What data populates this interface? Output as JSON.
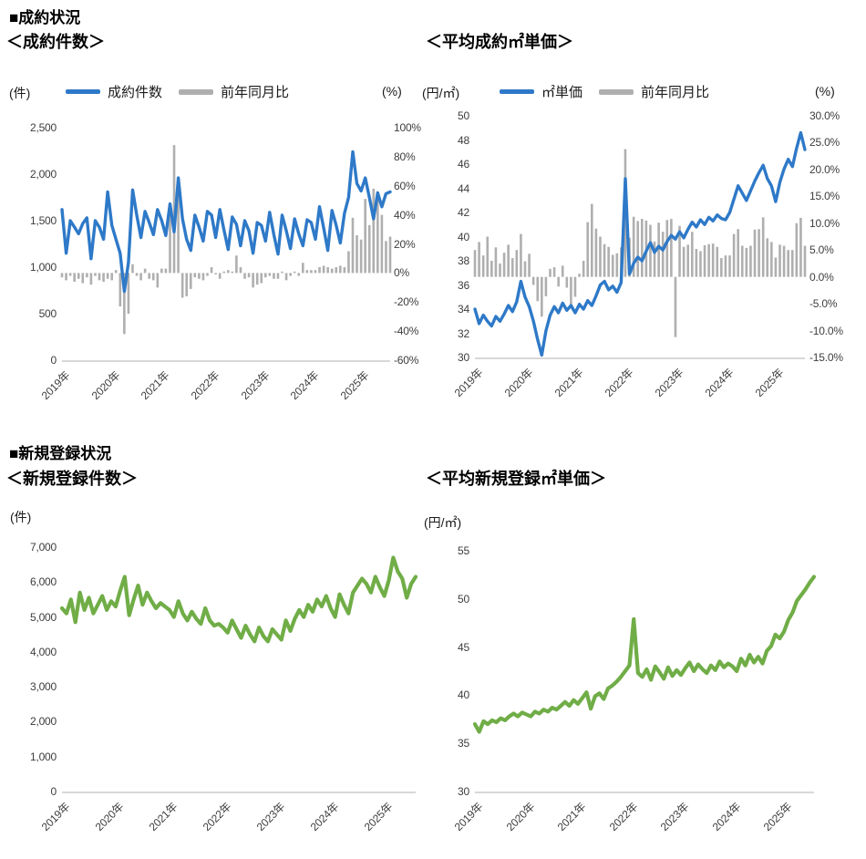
{
  "page_bg": "#FFFFFF",
  "colors": {
    "line_blue": "#2E79C8",
    "bar_gray": "#AFAFAF",
    "line_green": "#70AD47",
    "axis_text": "#3D3D3D",
    "axis_line": "#D8D8D8"
  },
  "sections": [
    {
      "title": "■成約状況"
    },
    {
      "title": "■新規登録状況"
    }
  ],
  "x_tick_labels": [
    "2019年",
    "2020年",
    "2021年",
    "2022年",
    "2023年",
    "2024年",
    "2025年"
  ],
  "chart_data": [
    {
      "key": "contract-count",
      "type": "line+bar",
      "title": "＜成約件数＞",
      "left_unit": "(件)",
      "right_unit": "(%)",
      "granularity": "monthly",
      "x_tick_labels": [
        "2019年",
        "2020年",
        "2021年",
        "2022年",
        "2023年",
        "2024年",
        "2025年"
      ],
      "legend": [
        {
          "label": "成約件数",
          "type": "line",
          "color": "#2E79C8"
        },
        {
          "label": "前年同月比",
          "type": "bar",
          "color": "#AFAFAF"
        }
      ],
      "left_axis": {
        "min": 0,
        "max": 2500,
        "ticks": [
          "2,500",
          "2,000",
          "1,500",
          "1,000",
          "500",
          "0"
        ]
      },
      "right_axis": {
        "min": -60,
        "max": 100,
        "ticks": [
          "100%",
          "80%",
          "60%",
          "40%",
          "20%",
          "0%",
          "-20%",
          "-40%",
          "-60%"
        ]
      },
      "line": [
        1620,
        1150,
        1500,
        1430,
        1360,
        1470,
        1530,
        1090,
        1500,
        1430,
        1300,
        1810,
        1450,
        1300,
        1150,
        740,
        1050,
        1830,
        1560,
        1320,
        1600,
        1480,
        1350,
        1620,
        1500,
        1340,
        1680,
        1380,
        1960,
        1520,
        1300,
        1180,
        1560,
        1430,
        1280,
        1600,
        1560,
        1320,
        1620,
        1400,
        1190,
        1540,
        1460,
        1230,
        1500,
        1390,
        1150,
        1480,
        1450,
        1280,
        1590,
        1350,
        1140,
        1560,
        1390,
        1200,
        1520,
        1360,
        1230,
        1510,
        1480,
        1300,
        1650,
        1420,
        1180,
        1610,
        1450,
        1260,
        1580,
        1750,
        2240,
        1900,
        1820,
        1960,
        1750,
        1520,
        1800,
        1650,
        1790,
        1810
      ],
      "bars": [
        -3,
        -5,
        -2,
        -6,
        -4,
        -7,
        -3,
        -8,
        -2,
        -5,
        -6,
        -4,
        -5,
        2,
        -23,
        -42,
        -28,
        6,
        -2,
        -5,
        3,
        -4,
        -5,
        -10,
        3,
        3,
        46,
        88,
        62,
        -17,
        -16,
        -11,
        -3,
        -4,
        -5,
        -2,
        4,
        -1,
        -4,
        1,
        2,
        1,
        12,
        4,
        -4,
        -3,
        -10,
        -8,
        -7,
        -3,
        -2,
        -4,
        -4,
        1,
        -5,
        -2,
        1,
        -2,
        7,
        2,
        2,
        2,
        4,
        5,
        4,
        3,
        4,
        5,
        4,
        15,
        38,
        26,
        23,
        51,
        33,
        58,
        55,
        40,
        22,
        25
      ]
    },
    {
      "key": "contract-unit-price",
      "type": "line+bar",
      "title": "＜平均成約㎡単価＞",
      "left_unit": "(円/㎡)",
      "right_unit": "(%)",
      "granularity": "monthly",
      "x_tick_labels": [
        "2019年",
        "2020年",
        "2021年",
        "2022年",
        "2023年",
        "2024年",
        "2025年"
      ],
      "legend": [
        {
          "label": "㎡単価",
          "type": "line",
          "color": "#2E79C8"
        },
        {
          "label": "前年同月比",
          "type": "bar",
          "color": "#AFAFAF"
        }
      ],
      "left_axis": {
        "min": 30,
        "max": 50,
        "ticks": [
          "50",
          "48",
          "46",
          "44",
          "42",
          "40",
          "38",
          "36",
          "34",
          "32",
          "30"
        ]
      },
      "right_axis": {
        "min": -15,
        "max": 30,
        "ticks": [
          "30.0%",
          "25.0%",
          "20.0%",
          "15.0%",
          "10.0%",
          "5.0%",
          "0.0%",
          "-5.0%",
          "-10.0%",
          "-15.0%"
        ]
      },
      "line": [
        34.0,
        32.8,
        33.5,
        33.0,
        32.6,
        33.4,
        33.0,
        33.6,
        34.3,
        33.8,
        34.6,
        36.3,
        35.0,
        34.2,
        33.0,
        31.5,
        30.2,
        32.2,
        33.5,
        34.2,
        33.7,
        34.5,
        33.9,
        34.3,
        33.7,
        34.4,
        34.0,
        34.7,
        34.3,
        35.1,
        36.0,
        36.3,
        35.6,
        35.9,
        35.4,
        36.2,
        44.8,
        36.9,
        37.8,
        38.3,
        38.0,
        38.8,
        39.5,
        38.7,
        39.2,
        38.9,
        39.6,
        40.1,
        39.8,
        40.4,
        39.9,
        40.6,
        41.2,
        40.8,
        41.4,
        41.0,
        41.6,
        41.3,
        41.8,
        41.5,
        41.4,
        42.0,
        43.1,
        44.2,
        43.6,
        43.0,
        43.8,
        44.6,
        45.3,
        45.9,
        44.8,
        44.2,
        42.9,
        44.5,
        45.6,
        46.4,
        45.8,
        47.3,
        48.6,
        47.2
      ],
      "bars": [
        5.0,
        6.5,
        4.0,
        7.5,
        3.0,
        5.5,
        2.5,
        4.5,
        6.0,
        3.5,
        5.0,
        8.0,
        2.9,
        4.3,
        -1.5,
        -4.5,
        -7.4,
        -3.6,
        1.5,
        1.8,
        -1.8,
        2.1,
        -2.0,
        -5.5,
        -3.7,
        0.6,
        3.0,
        10.2,
        13.6,
        9.0,
        7.5,
        6.1,
        5.6,
        4.1,
        4.4,
        5.5,
        23.8,
        7.3,
        11.2,
        10.4,
        10.8,
        10.5,
        9.7,
        6.6,
        10.1,
        8.4,
        10.6,
        10.8,
        -11.2,
        9.5,
        5.6,
        6.0,
        8.4,
        5.2,
        4.8,
        5.9,
        6.1,
        6.2,
        5.6,
        3.5,
        4.0,
        4.0,
        8.0,
        8.9,
        5.8,
        5.4,
        5.8,
        8.8,
        8.9,
        11.1,
        7.2,
        6.5,
        3.6,
        6.0,
        5.8,
        5.0,
        5.0,
        10.0,
        11.0,
        5.8
      ]
    },
    {
      "key": "new-listing-count",
      "type": "line",
      "title": "＜新規登録件数＞",
      "left_unit": "(件)",
      "granularity": "monthly",
      "x_tick_labels": [
        "2019年",
        "2020年",
        "2021年",
        "2022年",
        "2023年",
        "2024年",
        "2025年"
      ],
      "left_axis": {
        "min": 0,
        "max": 7000,
        "ticks": [
          "7,000",
          "6,000",
          "5,000",
          "4,000",
          "3,000",
          "2,000",
          "1,000",
          "0"
        ]
      },
      "line": [
        5250,
        5100,
        5500,
        4850,
        5700,
        5200,
        5550,
        5100,
        5350,
        5600,
        5200,
        5450,
        5300,
        5750,
        6150,
        5050,
        5500,
        5900,
        5350,
        5700,
        5450,
        5250,
        5400,
        5300,
        5200,
        5000,
        5450,
        5100,
        4900,
        5150,
        4950,
        4800,
        5250,
        4900,
        4750,
        4800,
        4700,
        4550,
        4900,
        4650,
        4400,
        4750,
        4500,
        4300,
        4700,
        4450,
        4300,
        4650,
        4500,
        4350,
        4900,
        4600,
        4950,
        5200,
        5000,
        5350,
        5150,
        5500,
        5300,
        5600,
        5250,
        5000,
        5650,
        5350,
        5100,
        5700,
        5900,
        6100,
        5950,
        5700,
        6150,
        5850,
        5600,
        6050,
        6700,
        6300,
        6100,
        5550,
        5950,
        6150
      ]
    },
    {
      "key": "new-listing-unit-price",
      "type": "line",
      "title": "＜平均新規登録㎡単価＞",
      "left_unit": "(円/㎡)",
      "granularity": "monthly",
      "x_tick_labels": [
        "2019年",
        "2020年",
        "2021年",
        "2022年",
        "2023年",
        "2024年",
        "2025年"
      ],
      "left_axis": {
        "min": 30,
        "max": 55,
        "ticks": [
          "55",
          "50",
          "45",
          "40",
          "35",
          "30"
        ]
      },
      "line": [
        37.0,
        36.2,
        37.3,
        37.0,
        37.4,
        37.2,
        37.6,
        37.4,
        37.8,
        38.1,
        37.8,
        38.2,
        38.0,
        37.8,
        38.3,
        38.1,
        38.5,
        38.3,
        38.7,
        38.5,
        38.9,
        39.3,
        38.9,
        39.5,
        39.1,
        39.7,
        40.3,
        38.6,
        39.9,
        40.2,
        39.6,
        40.7,
        41.0,
        41.4,
        41.9,
        42.5,
        43.1,
        47.9,
        42.3,
        41.9,
        42.7,
        41.6,
        43.0,
        42.4,
        41.7,
        42.9,
        42.0,
        42.6,
        42.1,
        42.8,
        43.4,
        42.5,
        43.2,
        42.7,
        42.3,
        43.1,
        42.6,
        43.5,
        42.9,
        43.3,
        43.0,
        42.5,
        43.8,
        43.1,
        44.2,
        43.4,
        44.0,
        43.3,
        44.6,
        45.1,
        46.3,
        45.9,
        46.6,
        47.8,
        48.6,
        49.8,
        50.4,
        51.0,
        51.7,
        52.3
      ]
    }
  ]
}
